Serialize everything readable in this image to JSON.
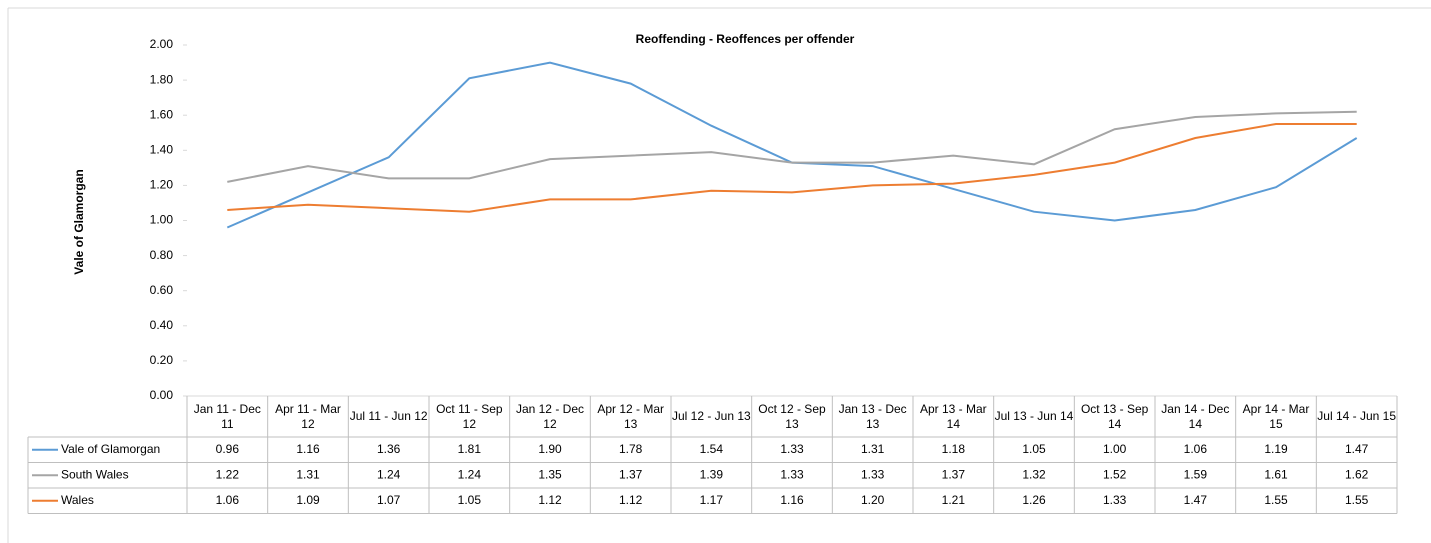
{
  "chart_data": {
    "type": "line",
    "title": "Reoffending - Reoffences per offender",
    "y_label": "Vale of Glamorgan",
    "categories": [
      "Jan 11 - Dec 11",
      "Apr 11 - Mar 12",
      "Jul 11 - Jun 12",
      "Oct 11 - Sep 12",
      "Jan 12 - Dec 12",
      "Apr 12 - Mar 13",
      "Jul 12 - Jun 13",
      "Oct 12 - Sep 13",
      "Jan 13 - Dec 13",
      "Apr 13 - Mar 14",
      "Jul 13 - Jun 14",
      "Oct 13 - Sep 14",
      "Jan 14 - Dec 14",
      "Apr 14 - Mar 15",
      "Jul 14 - Jun 15"
    ],
    "series": [
      {
        "name": "Vale of Glamorgan",
        "color": "#5b9bd5",
        "values": [
          0.96,
          1.16,
          1.36,
          1.81,
          1.9,
          1.78,
          1.54,
          1.33,
          1.31,
          1.18,
          1.05,
          1.0,
          1.06,
          1.19,
          1.47
        ],
        "value_labels": [
          "0.96",
          "1.16",
          "1.36",
          "1.81",
          "1.90",
          "1.78",
          "1.54",
          "1.33",
          "1.31",
          "1.18",
          "1.05",
          "1.00",
          "1.06",
          "1.19",
          "1.47"
        ]
      },
      {
        "name": "South Wales",
        "color": "#a5a5a5",
        "values": [
          1.22,
          1.31,
          1.24,
          1.24,
          1.35,
          1.37,
          1.39,
          1.33,
          1.33,
          1.37,
          1.32,
          1.52,
          1.59,
          1.61,
          1.62
        ],
        "value_labels": [
          "1.22",
          "1.31",
          "1.24",
          "1.24",
          "1.35",
          "1.37",
          "1.39",
          "1.33",
          "1.33",
          "1.37",
          "1.32",
          "1.52",
          "1.59",
          "1.61",
          "1.62"
        ]
      },
      {
        "name": "Wales",
        "color": "#ed7d31",
        "values": [
          1.06,
          1.09,
          1.07,
          1.05,
          1.12,
          1.12,
          1.17,
          1.16,
          1.2,
          1.21,
          1.26,
          1.33,
          1.47,
          1.55,
          1.55
        ],
        "value_labels": [
          "1.06",
          "1.09",
          "1.07",
          "1.05",
          "1.12",
          "1.12",
          "1.17",
          "1.16",
          "1.20",
          "1.21",
          "1.26",
          "1.33",
          "1.47",
          "1.55",
          "1.55"
        ]
      }
    ],
    "ylim": [
      0,
      2
    ],
    "yticks": [
      {
        "value": 0,
        "label": "0.00"
      },
      {
        "value": 0.2,
        "label": "0.20"
      },
      {
        "value": 0.4,
        "label": "0.40"
      },
      {
        "value": 0.6,
        "label": "0.60"
      },
      {
        "value": 0.8,
        "label": "0.80"
      },
      {
        "value": 1,
        "label": "1.00"
      },
      {
        "value": 1.2,
        "label": "1.20"
      },
      {
        "value": 1.4,
        "label": "1.40"
      },
      {
        "value": 1.6,
        "label": "1.60"
      },
      {
        "value": 1.8,
        "label": "1.80"
      },
      {
        "value": 2,
        "label": "2.00"
      }
    ],
    "grid": false
  }
}
